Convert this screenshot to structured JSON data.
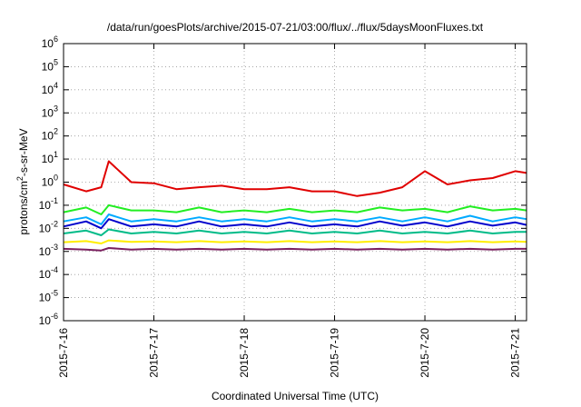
{
  "chart_data": {
    "type": "line",
    "title": "/data/run/goesPlots/archive/2015-07-21/03:00/flux/../flux/5daysMoonFluxes.txt",
    "xlabel": "Coordinated Universal Time (UTC)",
    "ylabel": {
      "base": "protons/cm",
      "sup": "2",
      "rest": "-s-sr-MeV"
    },
    "yscale": "log",
    "ylim_exponent": [
      -6,
      6
    ],
    "yticks": [
      {
        "base": "10",
        "exp": "-6"
      },
      {
        "base": "10",
        "exp": "-5"
      },
      {
        "base": "10",
        "exp": "-4"
      },
      {
        "base": "10",
        "exp": "-3"
      },
      {
        "base": "10",
        "exp": "-2"
      },
      {
        "base": "10",
        "exp": "-1"
      },
      {
        "base": "10",
        "exp": "0"
      },
      {
        "base": "10",
        "exp": "1"
      },
      {
        "base": "10",
        "exp": "2"
      },
      {
        "base": "10",
        "exp": "3"
      },
      {
        "base": "10",
        "exp": "4"
      },
      {
        "base": "10",
        "exp": "5"
      },
      {
        "base": "10",
        "exp": "6"
      }
    ],
    "xlim": [
      "2015-07-16 00:00",
      "2015-07-21 03:00"
    ],
    "xticks": [
      "2015-7-16",
      "2015-7-17",
      "2015-7-18",
      "2015-7-19",
      "2015-7-20",
      "2015-7-21"
    ],
    "grid": "dotted",
    "legend": "none",
    "x": [
      "2015-07-16 00:00",
      "2015-07-16 06:00",
      "2015-07-16 10:00",
      "2015-07-16 12:00",
      "2015-07-16 18:00",
      "2015-07-17 00:00",
      "2015-07-17 06:00",
      "2015-07-17 12:00",
      "2015-07-17 18:00",
      "2015-07-18 00:00",
      "2015-07-18 06:00",
      "2015-07-18 12:00",
      "2015-07-18 18:00",
      "2015-07-19 00:00",
      "2015-07-19 06:00",
      "2015-07-19 12:00",
      "2015-07-19 18:00",
      "2015-07-20 00:00",
      "2015-07-20 06:00",
      "2015-07-20 12:00",
      "2015-07-20 18:00",
      "2015-07-21 00:00",
      "2015-07-21 03:00"
    ],
    "series": [
      {
        "color": "#e00000",
        "values": [
          0.8,
          0.4,
          0.6,
          8,
          1.0,
          0.9,
          0.5,
          0.6,
          0.7,
          0.5,
          0.5,
          0.6,
          0.4,
          0.4,
          0.25,
          0.35,
          0.6,
          3.0,
          0.8,
          1.2,
          1.5,
          3.0,
          2.5
        ]
      },
      {
        "color": "#22ee22",
        "values": [
          0.05,
          0.08,
          0.04,
          0.1,
          0.06,
          0.06,
          0.05,
          0.08,
          0.05,
          0.06,
          0.05,
          0.07,
          0.05,
          0.06,
          0.05,
          0.08,
          0.06,
          0.07,
          0.05,
          0.09,
          0.06,
          0.07,
          0.06
        ]
      },
      {
        "color": "#00aaff",
        "values": [
          0.02,
          0.03,
          0.015,
          0.04,
          0.02,
          0.025,
          0.02,
          0.03,
          0.02,
          0.025,
          0.02,
          0.03,
          0.02,
          0.025,
          0.02,
          0.03,
          0.02,
          0.03,
          0.02,
          0.035,
          0.02,
          0.03,
          0.025
        ]
      },
      {
        "color": "#0000cc",
        "values": [
          0.012,
          0.02,
          0.01,
          0.025,
          0.012,
          0.015,
          0.012,
          0.02,
          0.012,
          0.015,
          0.012,
          0.018,
          0.012,
          0.015,
          0.012,
          0.02,
          0.013,
          0.018,
          0.012,
          0.02,
          0.013,
          0.018,
          0.014
        ]
      },
      {
        "color": "#00bb88",
        "values": [
          0.006,
          0.008,
          0.005,
          0.009,
          0.006,
          0.007,
          0.006,
          0.008,
          0.006,
          0.007,
          0.006,
          0.008,
          0.006,
          0.007,
          0.006,
          0.008,
          0.006,
          0.007,
          0.006,
          0.008,
          0.006,
          0.007,
          0.007
        ]
      },
      {
        "color": "#ffee00",
        "values": [
          0.0025,
          0.0028,
          0.0022,
          0.003,
          0.0026,
          0.0027,
          0.0025,
          0.0028,
          0.0025,
          0.0027,
          0.0025,
          0.0028,
          0.0025,
          0.0027,
          0.0025,
          0.0028,
          0.0025,
          0.0027,
          0.0025,
          0.0028,
          0.0025,
          0.0027,
          0.0026
        ]
      },
      {
        "color": "#7a1f5e",
        "values": [
          0.0013,
          0.0012,
          0.0011,
          0.0014,
          0.0012,
          0.0013,
          0.0012,
          0.0013,
          0.0012,
          0.0013,
          0.0012,
          0.0013,
          0.0012,
          0.0013,
          0.0012,
          0.0013,
          0.0012,
          0.0013,
          0.0012,
          0.0013,
          0.0012,
          0.0013,
          0.0013
        ]
      }
    ]
  }
}
